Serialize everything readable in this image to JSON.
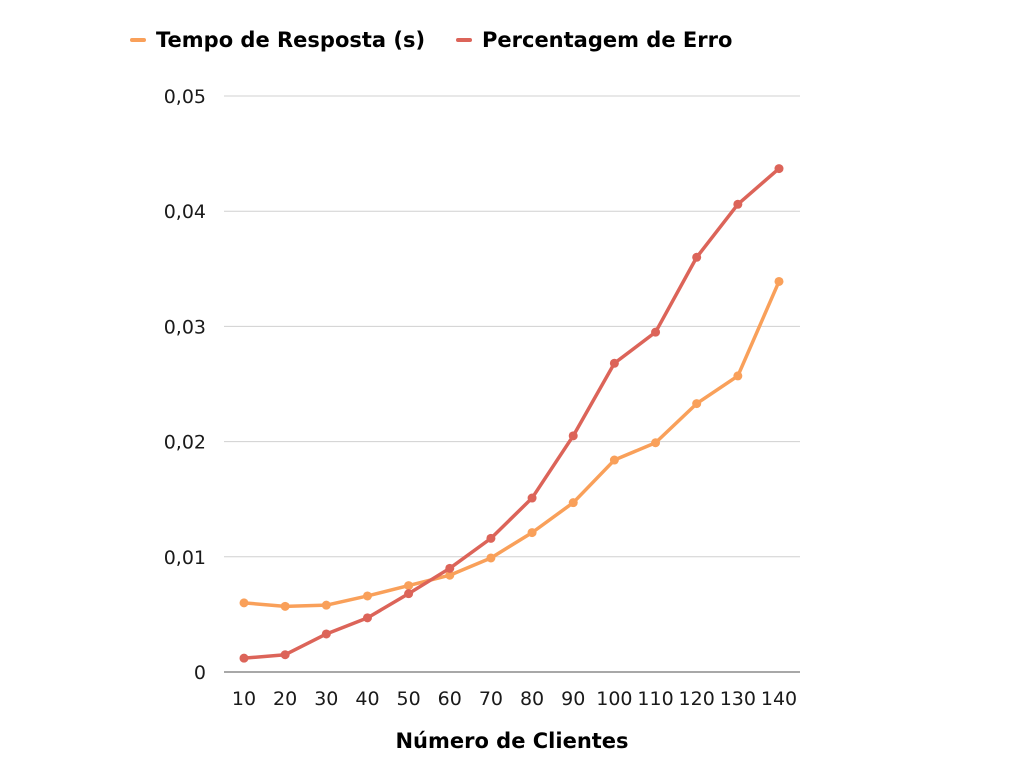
{
  "chart_data": {
    "type": "line",
    "title": "",
    "xlabel": "Número de Clientes",
    "ylabel": "",
    "categories": [
      "10",
      "20",
      "30",
      "40",
      "50",
      "60",
      "70",
      "80",
      "90",
      "100",
      "110",
      "120",
      "130",
      "140"
    ],
    "ylim": [
      0,
      0.05
    ],
    "y_ticks": [
      0,
      0.01,
      0.02,
      0.03,
      0.04,
      0.05
    ],
    "y_tick_labels": [
      "0",
      "0,01",
      "0,02",
      "0,03",
      "0,04",
      "0,05"
    ],
    "grid": true,
    "legend_position": "top",
    "series": [
      {
        "name": "Tempo de Resposta (s)",
        "color": "#F9A05A",
        "values": [
          0.006,
          0.0057,
          0.0058,
          0.0066,
          0.0075,
          0.0084,
          0.0099,
          0.0121,
          0.0147,
          0.0184,
          0.0199,
          0.0233,
          0.0257,
          0.0339
        ]
      },
      {
        "name": "Percentagem de Erro",
        "color": "#DC6459",
        "values": [
          0.0012,
          0.0015,
          0.0033,
          0.0047,
          0.0068,
          0.009,
          0.0116,
          0.0151,
          0.0205,
          0.0268,
          0.0295,
          0.036,
          0.0406,
          0.0437
        ]
      }
    ]
  }
}
